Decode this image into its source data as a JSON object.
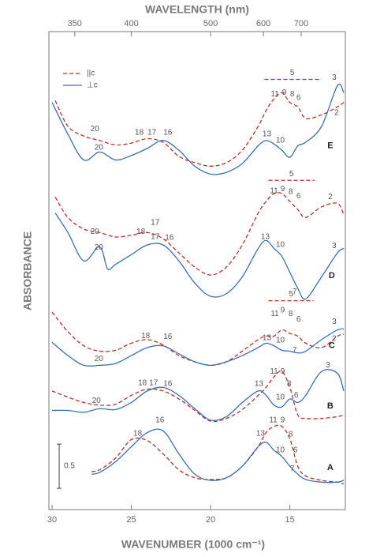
{
  "chart_data": {
    "type": "line",
    "xlabel": "WAVENUMBER (1000 cm⁻¹)",
    "x2label": "WAVELENGTH (nm)",
    "ylabel": "ABSORBANCE",
    "xlim": [
      30.2,
      11.5
    ],
    "ylim": [
      0,
      5.4
    ],
    "xticks": [
      30,
      25,
      20,
      15
    ],
    "x2ticks": [
      350,
      400,
      500,
      600,
      700
    ],
    "legend": {
      "parallel": {
        "name": "||c",
        "color": "#b8322a",
        "dash": true
      },
      "perpendicular": {
        "name": "⊥c",
        "color": "#3a6fb5",
        "dash": false
      }
    },
    "scale_bar": {
      "label": "0.5",
      "value": 0.5,
      "x": 29.55,
      "y0": 0.24
    },
    "traces": [
      {
        "label": "E",
        "label_x": 12.45,
        "label_y": 4.11,
        "parallel": {
          "x": [
            29.8,
            29,
            28,
            27,
            26,
            25,
            24,
            23,
            22,
            21,
            20,
            19,
            18,
            17,
            16.5,
            16,
            15.5,
            15,
            14.5,
            14,
            13,
            12,
            11.6
          ],
          "values": [
            4.62,
            4.33,
            4.22,
            4.17,
            4.12,
            4.14,
            4.19,
            4.15,
            3.99,
            3.92,
            3.88,
            3.92,
            4.06,
            4.33,
            4.51,
            4.64,
            4.71,
            4.6,
            4.55,
            4.42,
            4.46,
            4.55,
            4.6
          ]
        },
        "perpendicular": {
          "x": [
            30,
            29,
            28,
            27,
            26,
            25,
            24,
            23,
            22,
            21,
            20,
            19,
            18,
            17,
            16.5,
            16,
            15.5,
            15,
            14.5,
            14,
            13,
            12,
            11.6
          ],
          "values": [
            4.6,
            4.24,
            3.95,
            4.04,
            3.95,
            4.0,
            4.08,
            4.17,
            4.06,
            3.88,
            3.79,
            3.81,
            3.91,
            4.11,
            4.17,
            4.13,
            4.06,
            3.98,
            4.11,
            4.15,
            4.33,
            4.79,
            4.71
          ]
        },
        "bracket": {
          "text": "5",
          "x": [
            16.6,
            13.1
          ],
          "y": 4.86
        },
        "annotations": [
          {
            "text": "20",
            "x": 27.3,
            "y": 4.3
          },
          {
            "text": "20",
            "x": 27.05,
            "y": 4.09
          },
          {
            "text": "18",
            "x": 24.5,
            "y": 4.26
          },
          {
            "text": "17",
            "x": 23.7,
            "y": 4.26
          },
          {
            "text": "16",
            "x": 22.7,
            "y": 4.26
          },
          {
            "text": "13",
            "x": 16.45,
            "y": 4.24
          },
          {
            "text": "10",
            "x": 15.6,
            "y": 4.17
          },
          {
            "text": "11",
            "x": 15.95,
            "y": 4.69
          },
          {
            "text": "9",
            "x": 15.35,
            "y": 4.71
          },
          {
            "text": "8",
            "x": 14.85,
            "y": 4.69
          },
          {
            "text": "6",
            "x": 14.45,
            "y": 4.65
          },
          {
            "text": "3",
            "x": 12.2,
            "y": 4.88
          },
          {
            "text": "2",
            "x": 12.05,
            "y": 4.48
          }
        ]
      },
      {
        "label": "D",
        "label_x": 12.35,
        "label_y": 2.64,
        "parallel": {
          "x": [
            29.8,
            29,
            28,
            27,
            26,
            25,
            24,
            23,
            22,
            21,
            20,
            19,
            18,
            17,
            16.5,
            16,
            15.5,
            15,
            14.5,
            14,
            13,
            12,
            11.6
          ],
          "values": [
            3.53,
            3.3,
            3.17,
            3.13,
            3.08,
            3.1,
            3.13,
            3.06,
            2.9,
            2.74,
            2.65,
            2.74,
            2.99,
            3.35,
            3.48,
            3.57,
            3.57,
            3.48,
            3.39,
            3.3,
            3.42,
            3.46,
            3.33
          ]
        },
        "perpendicular": {
          "x": [
            29.8,
            29,
            28,
            27,
            26.5,
            26,
            25,
            24,
            23,
            22,
            21,
            20,
            19,
            18,
            17,
            16.5,
            16,
            15.5,
            15,
            14.5,
            14,
            13,
            12,
            11.6
          ],
          "values": [
            3.35,
            3.13,
            2.81,
            2.97,
            2.72,
            2.77,
            2.88,
            2.99,
            2.99,
            2.81,
            2.56,
            2.41,
            2.44,
            2.63,
            2.95,
            3.04,
            2.95,
            2.86,
            2.68,
            2.5,
            2.38,
            2.63,
            2.9,
            2.95
          ]
        },
        "bracket": {
          "text": "5",
          "x": [
            16.35,
            13.45
          ],
          "y": 3.72
        },
        "annotations": [
          {
            "text": "20",
            "x": 27.3,
            "y": 3.14
          },
          {
            "text": "20",
            "x": 27.05,
            "y": 2.96
          },
          {
            "text": "18",
            "x": 24.4,
            "y": 3.14
          },
          {
            "text": "17",
            "x": 23.5,
            "y": 3.24
          },
          {
            "text": "17",
            "x": 23.5,
            "y": 3.08
          },
          {
            "text": "16",
            "x": 22.6,
            "y": 3.07
          },
          {
            "text": "13",
            "x": 16.55,
            "y": 3.08
          },
          {
            "text": "10",
            "x": 15.6,
            "y": 2.99
          },
          {
            "text": "11",
            "x": 16.0,
            "y": 3.6
          },
          {
            "text": "9",
            "x": 15.45,
            "y": 3.62
          },
          {
            "text": "8",
            "x": 14.95,
            "y": 3.59
          },
          {
            "text": "6",
            "x": 14.45,
            "y": 3.54
          },
          {
            "text": "2",
            "x": 12.45,
            "y": 3.53
          },
          {
            "text": "7",
            "x": 14.7,
            "y": 2.46
          },
          {
            "text": "3",
            "x": 12.2,
            "y": 2.98
          }
        ]
      },
      {
        "label": "C",
        "label_x": 12.35,
        "label_y": 1.85,
        "parallel": {
          "x": [
            30,
            29,
            28,
            27,
            26,
            25,
            24,
            23,
            22,
            21,
            20,
            19,
            18,
            17,
            16.5,
            16,
            15.5,
            15,
            14.5,
            14,
            13,
            12,
            11.6
          ],
          "values": [
            2.23,
            2.01,
            1.85,
            1.79,
            1.8,
            1.88,
            1.92,
            1.86,
            1.74,
            1.67,
            1.63,
            1.67,
            1.79,
            1.92,
            1.96,
            1.96,
            2.03,
            1.99,
            1.96,
            1.88,
            1.83,
            1.96,
            1.98
          ]
        },
        "perpendicular": {
          "x": [
            30,
            29,
            28,
            27,
            26,
            25,
            24,
            23,
            22,
            21,
            20,
            19,
            18,
            17,
            16.5,
            16,
            15.5,
            15,
            14.5,
            14,
            13,
            12,
            11.6
          ],
          "values": [
            1.89,
            1.74,
            1.63,
            1.63,
            1.65,
            1.74,
            1.83,
            1.85,
            1.76,
            1.67,
            1.63,
            1.67,
            1.74,
            1.83,
            1.88,
            1.85,
            1.8,
            1.79,
            1.77,
            1.79,
            1.92,
            2.03,
            2.04
          ]
        },
        "bracket": {
          "text": "5",
          "x": [
            16.35,
            13.5
          ],
          "y": 2.36
        },
        "annotations": [
          {
            "text": "20",
            "x": 27.05,
            "y": 1.7
          },
          {
            "text": "18",
            "x": 24.1,
            "y": 1.96
          },
          {
            "text": "16",
            "x": 22.7,
            "y": 1.95
          },
          {
            "text": "13",
            "x": 16.45,
            "y": 1.94
          },
          {
            "text": "10",
            "x": 15.6,
            "y": 1.91
          },
          {
            "text": "11",
            "x": 15.95,
            "y": 2.21
          },
          {
            "text": "9",
            "x": 15.45,
            "y": 2.25
          },
          {
            "text": "8",
            "x": 14.95,
            "y": 2.21
          },
          {
            "text": "6",
            "x": 14.45,
            "y": 2.15
          },
          {
            "text": "7",
            "x": 14.7,
            "y": 1.8
          },
          {
            "text": "3",
            "x": 12.2,
            "y": 2.12
          },
          {
            "text": "2",
            "x": 12.2,
            "y": 1.93
          }
        ]
      },
      {
        "label": "B",
        "label_x": 12.45,
        "label_y": 1.17,
        "parallel": {
          "x": [
            30,
            29,
            28,
            27,
            26,
            25,
            24,
            23,
            22,
            21,
            20,
            19,
            18,
            17,
            16.5,
            16,
            15.5,
            15,
            14.5,
            14,
            13,
            12,
            11.6
          ],
          "values": [
            1.34,
            1.27,
            1.21,
            1.18,
            1.19,
            1.29,
            1.36,
            1.34,
            1.25,
            1.12,
            1.0,
            1.03,
            1.13,
            1.29,
            1.38,
            1.5,
            1.56,
            1.38,
            1.07,
            1.03,
            1.03,
            1.05,
            1.07
          ]
        },
        "perpendicular": {
          "x": [
            30,
            29,
            28,
            27,
            26,
            25,
            24,
            23,
            22,
            21,
            20,
            19,
            18,
            17,
            16.5,
            16,
            15.5,
            15,
            14.5,
            14,
            13,
            12,
            11.6
          ],
          "values": [
            1.12,
            1.12,
            1.1,
            1.14,
            1.13,
            1.21,
            1.34,
            1.38,
            1.29,
            1.14,
            1.01,
            1.05,
            1.21,
            1.34,
            1.29,
            1.18,
            1.16,
            1.25,
            1.21,
            1.29,
            1.56,
            1.54,
            1.34
          ]
        },
        "annotations": [
          {
            "text": "20",
            "x": 27.2,
            "y": 1.23
          },
          {
            "text": "18",
            "x": 24.3,
            "y": 1.43
          },
          {
            "text": "17",
            "x": 23.6,
            "y": 1.43
          },
          {
            "text": "16",
            "x": 22.7,
            "y": 1.42
          },
          {
            "text": "13",
            "x": 16.95,
            "y": 1.42
          },
          {
            "text": "11",
            "x": 16.0,
            "y": 1.56
          },
          {
            "text": "9",
            "x": 15.45,
            "y": 1.56
          },
          {
            "text": "8",
            "x": 15.05,
            "y": 1.42
          },
          {
            "text": "10",
            "x": 15.6,
            "y": 1.27
          },
          {
            "text": "6",
            "x": 14.6,
            "y": 1.29
          },
          {
            "text": "3",
            "x": 12.6,
            "y": 1.63
          }
        ]
      },
      {
        "label": "A",
        "label_x": 12.45,
        "label_y": 0.47,
        "parallel": {
          "x": [
            27.5,
            27,
            26,
            25,
            24,
            23,
            22,
            21,
            20,
            19,
            18,
            17,
            16.5,
            16,
            15.5,
            15,
            14.5,
            14,
            13,
            12,
            11.6
          ],
          "values": [
            0.43,
            0.45,
            0.58,
            0.79,
            0.78,
            0.63,
            0.45,
            0.36,
            0.34,
            0.36,
            0.49,
            0.71,
            0.87,
            0.94,
            0.94,
            0.8,
            0.49,
            0.38,
            0.33,
            0.31,
            0.29
          ]
        },
        "perpendicular": {
          "x": [
            27.5,
            27,
            26,
            25,
            24,
            23,
            22,
            21,
            20,
            19,
            18,
            17,
            16.5,
            16,
            15.5,
            15,
            14.5,
            14,
            13,
            12,
            11.6
          ],
          "values": [
            0.4,
            0.42,
            0.54,
            0.71,
            0.87,
            0.89,
            0.63,
            0.4,
            0.33,
            0.36,
            0.49,
            0.71,
            0.76,
            0.67,
            0.6,
            0.49,
            0.4,
            0.34,
            0.31,
            0.31,
            0.33
          ]
        },
        "annotations": [
          {
            "text": "18",
            "x": 24.6,
            "y": 0.86
          },
          {
            "text": "16",
            "x": 23.2,
            "y": 1.01
          },
          {
            "text": "13",
            "x": 16.85,
            "y": 0.86
          },
          {
            "text": "11",
            "x": 16.05,
            "y": 1.01
          },
          {
            "text": "9",
            "x": 15.45,
            "y": 1.01
          },
          {
            "text": "8",
            "x": 14.95,
            "y": 0.85
          },
          {
            "text": "10",
            "x": 15.6,
            "y": 0.67
          },
          {
            "text": "6",
            "x": 14.65,
            "y": 0.67
          },
          {
            "text": "7",
            "x": 14.85,
            "y": 0.46
          }
        ]
      }
    ]
  }
}
